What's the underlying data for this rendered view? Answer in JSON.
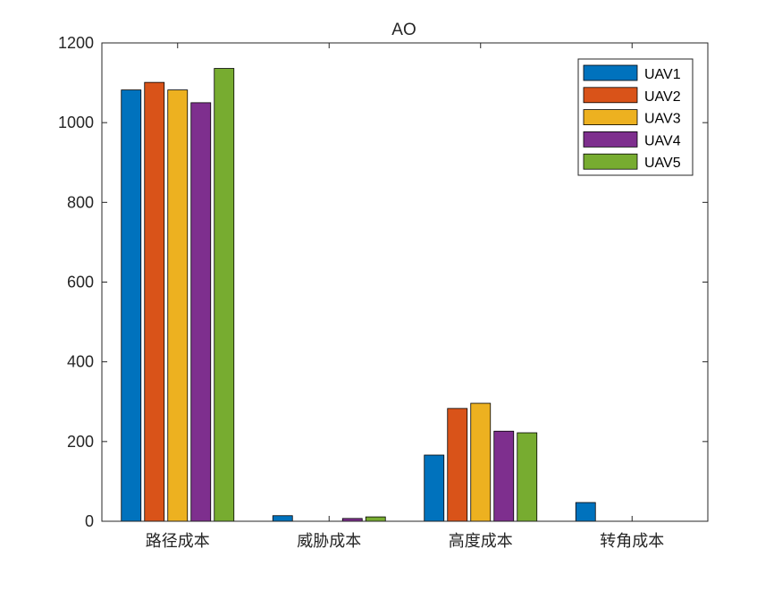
{
  "chart_data": {
    "type": "bar",
    "title": "AO",
    "xlabel": "",
    "ylabel": "",
    "categories": [
      "路径成本",
      "威胁成本",
      "高度成本",
      "转角成本"
    ],
    "ylim": [
      0,
      1200
    ],
    "yticks": [
      0,
      200,
      400,
      600,
      800,
      1000,
      1200
    ],
    "grid": false,
    "legend_position": "top-right",
    "series": [
      {
        "name": "UAV1",
        "color": "#0072BD",
        "values": [
          1082,
          14,
          166,
          47
        ]
      },
      {
        "name": "UAV2",
        "color": "#D95319",
        "values": [
          1101,
          0,
          283,
          0
        ]
      },
      {
        "name": "UAV3",
        "color": "#EDB120",
        "values": [
          1082,
          0,
          296,
          0
        ]
      },
      {
        "name": "UAV4",
        "color": "#7E2F8E",
        "values": [
          1050,
          7,
          226,
          0
        ]
      },
      {
        "name": "UAV5",
        "color": "#77AC30",
        "values": [
          1136,
          11,
          222,
          0
        ]
      }
    ]
  }
}
